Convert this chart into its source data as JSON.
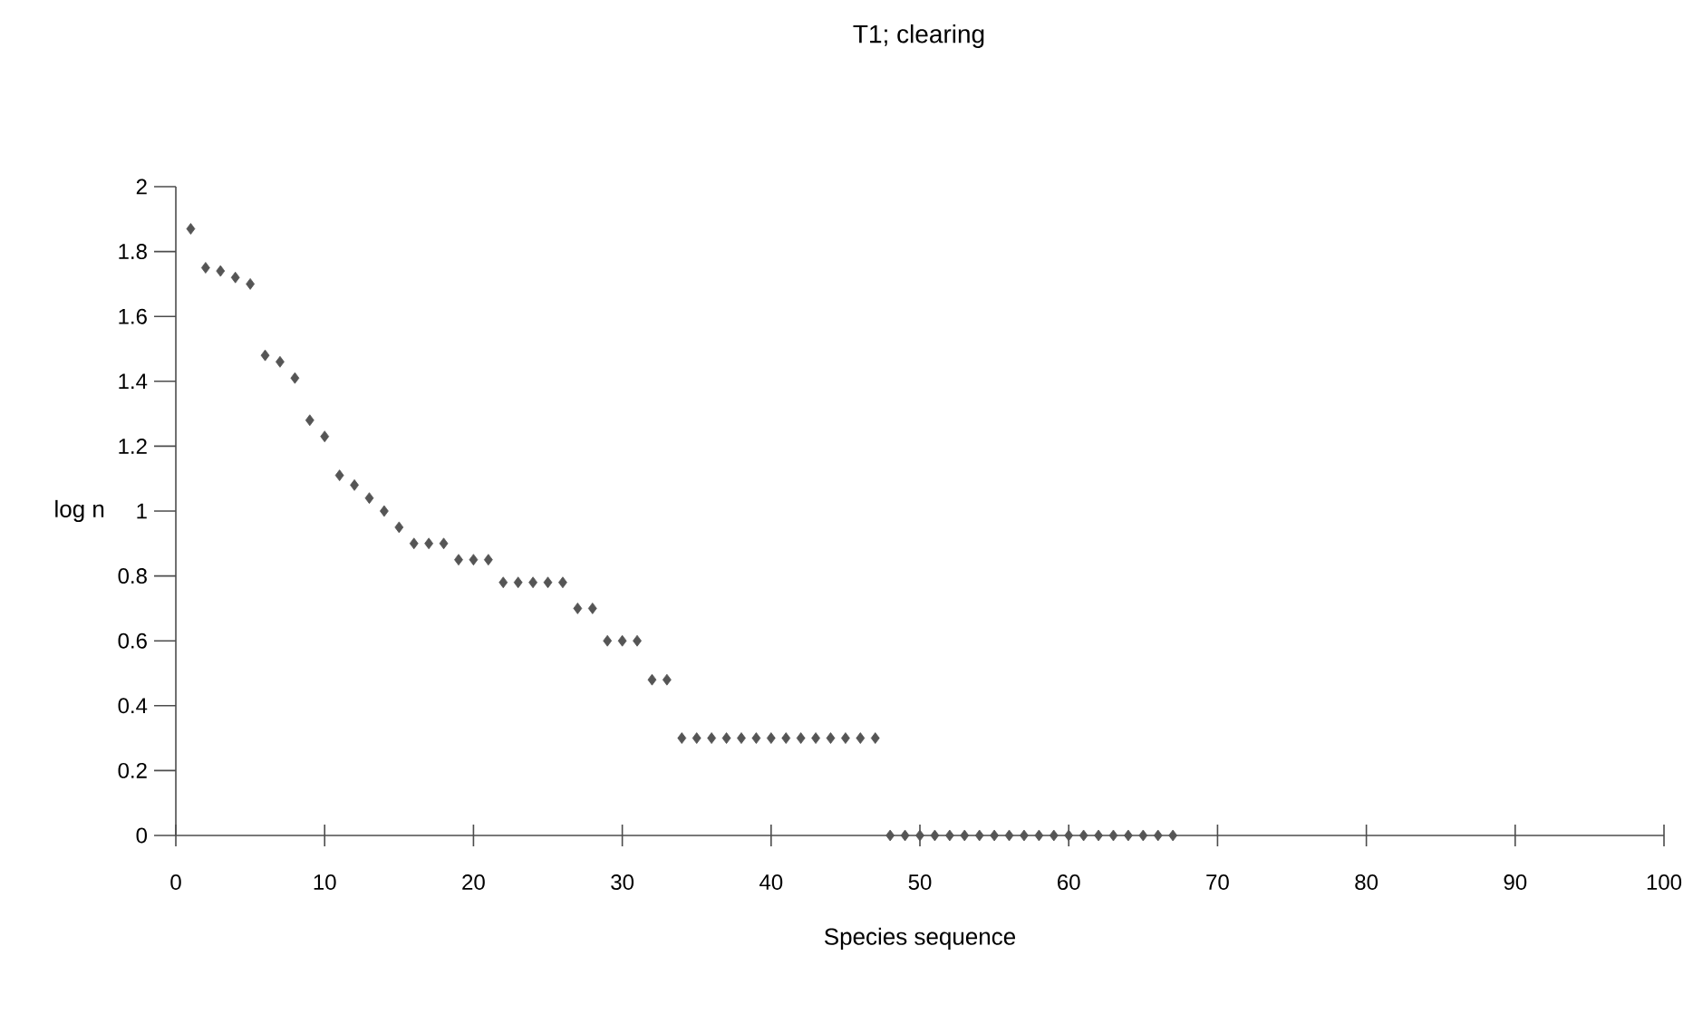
{
  "chart_data": {
    "type": "scatter",
    "title": "T1; clearing",
    "xlabel": "Species sequence",
    "ylabel": "log n",
    "x": [
      1,
      2,
      3,
      4,
      5,
      6,
      7,
      8,
      9,
      10,
      11,
      12,
      13,
      14,
      15,
      16,
      17,
      18,
      19,
      20,
      21,
      22,
      23,
      24,
      25,
      26,
      27,
      28,
      29,
      30,
      31,
      32,
      33,
      34,
      35,
      36,
      37,
      38,
      39,
      40,
      41,
      42,
      43,
      44,
      45,
      46,
      47,
      48,
      49,
      50,
      51,
      52,
      53,
      54,
      55,
      56,
      57,
      58,
      59,
      60,
      61,
      62,
      63,
      64,
      65,
      66,
      67
    ],
    "values": [
      1.87,
      1.75,
      1.74,
      1.72,
      1.7,
      1.48,
      1.46,
      1.41,
      1.28,
      1.23,
      1.11,
      1.08,
      1.04,
      1.0,
      0.95,
      0.9,
      0.9,
      0.9,
      0.85,
      0.85,
      0.85,
      0.78,
      0.78,
      0.78,
      0.78,
      0.78,
      0.7,
      0.7,
      0.6,
      0.6,
      0.6,
      0.48,
      0.48,
      0.3,
      0.3,
      0.3,
      0.3,
      0.3,
      0.3,
      0.3,
      0.3,
      0.3,
      0.3,
      0.3,
      0.3,
      0.3,
      0.3,
      0,
      0,
      0,
      0,
      0,
      0,
      0,
      0,
      0,
      0,
      0,
      0,
      0,
      0,
      0,
      0,
      0,
      0,
      0,
      0
    ],
    "color": "#555555",
    "marker": "diamond",
    "xlim": [
      0,
      100
    ],
    "xticks": [
      0,
      10,
      20,
      30,
      40,
      50,
      60,
      70,
      80,
      90,
      100
    ],
    "ylim": [
      0,
      2
    ],
    "yticks": [
      0,
      0.2,
      0.4,
      0.6,
      0.8,
      1,
      1.2,
      1.4,
      1.6,
      1.8,
      2
    ],
    "grid": false
  }
}
